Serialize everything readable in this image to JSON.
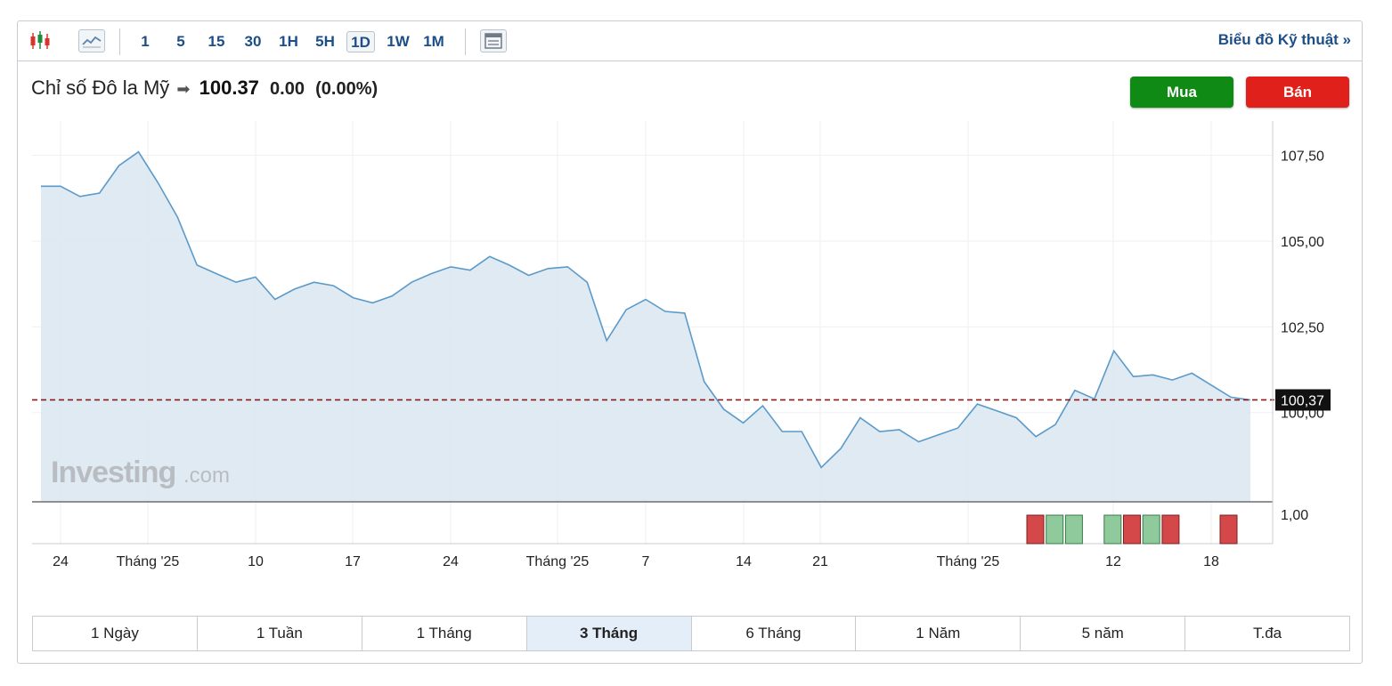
{
  "toolbar": {
    "intervals": [
      "1",
      "5",
      "15",
      "30",
      "1H",
      "5H",
      "1D",
      "1W",
      "1M"
    ],
    "active_interval": "1D",
    "tech_chart_link": "Biểu đồ Kỹ thuật »"
  },
  "quote": {
    "name": "Chỉ số Đô la Mỹ",
    "price": "100.37",
    "change": "0.00",
    "change_pct": "(0.00%)"
  },
  "buttons": {
    "buy": "Mua",
    "sell": "Bán"
  },
  "colors": {
    "buy": "#0f8a15",
    "sell": "#e0201a",
    "line": "#5b9ac9",
    "area": "#dce8f2",
    "last_price_line": "#8b1a1a"
  },
  "watermark": {
    "brand": "Investing",
    "suffix": ".com"
  },
  "range_tabs": [
    "1 Ngày",
    "1 Tuần",
    "1 Tháng",
    "3 Tháng",
    "6 Tháng",
    "1 Năm",
    "5 năm",
    "T.đa"
  ],
  "active_range": "3 Tháng",
  "chart_data": {
    "type": "area",
    "title": "",
    "xlabel": "",
    "ylabel": "",
    "x_tick_labels": [
      "24",
      "Tháng '25",
      "10",
      "17",
      "24",
      "Tháng '25",
      "7",
      "14",
      "21",
      "Tháng '25",
      "12",
      "18"
    ],
    "y_tick_labels": [
      "107,50",
      "105,00",
      "102,50",
      "100,00"
    ],
    "ylim": [
      97.4,
      108.5
    ],
    "last_price_label": "100,37",
    "last_price": 100.37,
    "series": [
      {
        "values": [
          106.6,
          106.6,
          106.3,
          106.4,
          107.2,
          107.6,
          106.7,
          105.7,
          104.3,
          104.05,
          103.8,
          103.95,
          103.3,
          103.6,
          103.8,
          103.7,
          103.35,
          103.2,
          103.4,
          103.8,
          104.05,
          104.25,
          104.15,
          104.55,
          104.3,
          104.0,
          104.2,
          104.25,
          103.8,
          102.1,
          103.0,
          103.3,
          102.95,
          102.9,
          100.9,
          100.1,
          99.7,
          100.2,
          99.45,
          99.45,
          98.4,
          98.95,
          99.85,
          99.45,
          99.5,
          99.15,
          99.35,
          99.55,
          100.25,
          100.05,
          99.85,
          99.3,
          99.65,
          100.65,
          100.4,
          101.8,
          101.05,
          101.1,
          100.95,
          101.15,
          100.8,
          100.45,
          100.37
        ]
      }
    ],
    "volume_axis_label": "1,00",
    "volume_bars": [
      "down",
      "up",
      "up",
      "empty",
      "up",
      "down",
      "up",
      "down",
      "empty",
      "empty",
      "down"
    ]
  }
}
